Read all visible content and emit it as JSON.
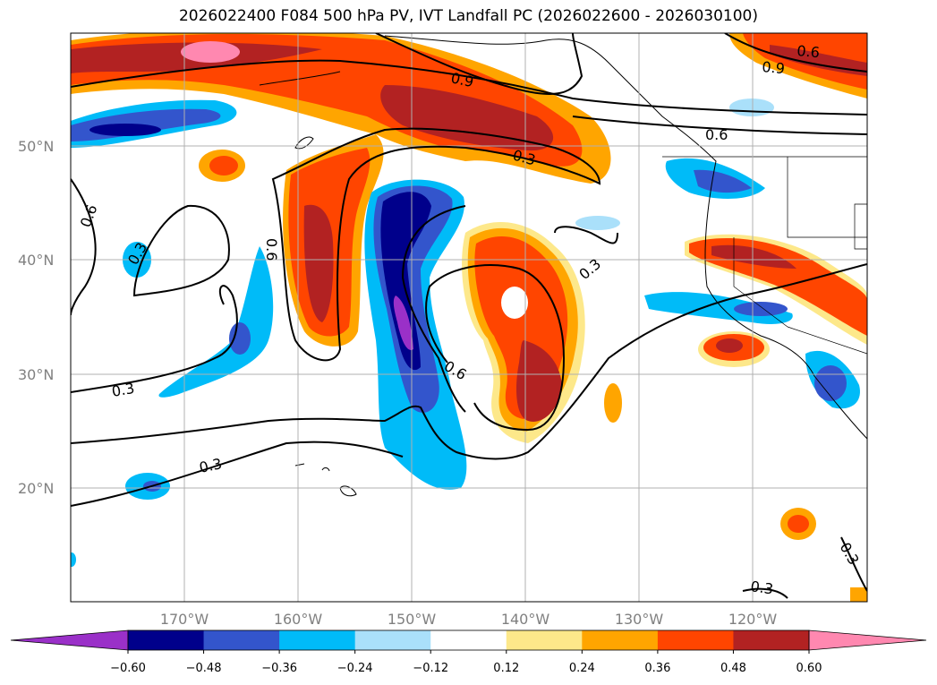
{
  "title": "2026022400 F084 500 hPa PV, IVT Landfall PC (2026022600 - 2026030100)",
  "map": {
    "lat_labels": [
      "50°N",
      "40°N",
      "30°N",
      "20°N"
    ],
    "lon_labels": [
      "170°W",
      "160°W",
      "150°W",
      "140°W",
      "130°W",
      "120°W"
    ],
    "contour_labels": [
      "0.9",
      "0.6",
      "0.9",
      "0.6",
      "0.3",
      "0.6",
      "0.3",
      "0.6",
      "0.3",
      "0.3",
      "0.6",
      "0.3",
      "0.3",
      "0.3",
      "0.3"
    ]
  },
  "colorbar": {
    "ticks": [
      "−0.60",
      "−0.48",
      "−0.36",
      "−0.24",
      "−0.12",
      "0.12",
      "0.24",
      "0.36",
      "0.48",
      "0.60"
    ],
    "colors": [
      "#9a30c8",
      "#00008b",
      "#3355cc",
      "#00bbf8",
      "#aae0fa",
      "#ffffff",
      "#fde88a",
      "#ffa500",
      "#ff4500",
      "#b22222",
      "#ff88b0"
    ]
  }
}
